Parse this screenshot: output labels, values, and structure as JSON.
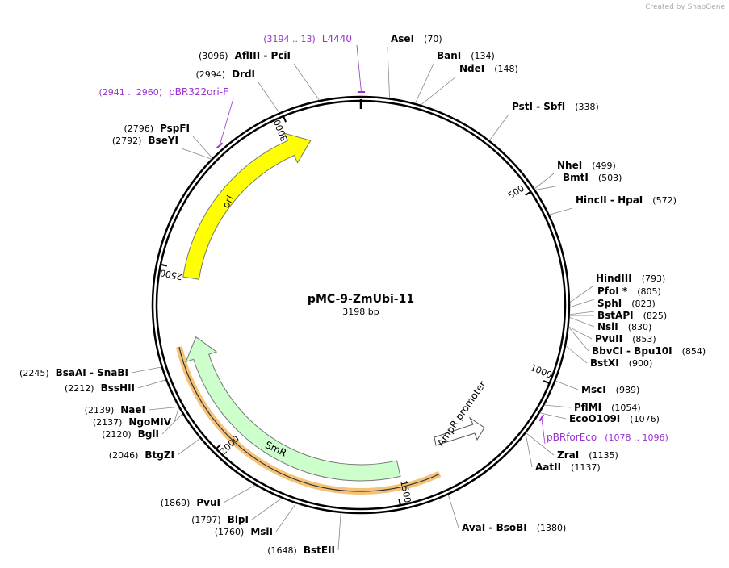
{
  "header": {
    "credit": "Created by SnapGene"
  },
  "map": {
    "name": "pMC-9-ZmUbi-11",
    "size": "3198 bp",
    "ticks": [
      500,
      1000,
      1500,
      2000,
      2500,
      3000
    ],
    "sites": [
      {
        "name": "AseI",
        "position": "(70)"
      },
      {
        "name": "BanI",
        "position": "(134)"
      },
      {
        "name": "NdeI",
        "position": "(148)"
      },
      {
        "name": "PstI  - SbfI",
        "position": "(338)"
      },
      {
        "name": "NheI",
        "position": "(499)"
      },
      {
        "name": "BmtI",
        "position": "(503)"
      },
      {
        "name": "HincII  - HpaI",
        "position": "(572)"
      },
      {
        "name": "HindIII",
        "position": "(793)"
      },
      {
        "name": "PfoI *",
        "position": "(805)"
      },
      {
        "name": "SphI",
        "position": "(823)"
      },
      {
        "name": "BstAPI",
        "position": "(825)"
      },
      {
        "name": "NsiI",
        "position": "(830)"
      },
      {
        "name": "PvuII",
        "position": "(853)"
      },
      {
        "name": "BbvCI  - Bpu10I",
        "position": "(854)"
      },
      {
        "name": "BstXI",
        "position": "(900)"
      },
      {
        "name": "MscI",
        "position": "(989)"
      },
      {
        "name": "PflMI",
        "position": "(1054)"
      },
      {
        "name": "EcoO109I",
        "position": "(1076)"
      },
      {
        "name": "ZraI",
        "position": "(1135)"
      },
      {
        "name": "AatII",
        "position": "(1137)"
      },
      {
        "name": "AvaI  - BsoBI",
        "position": "(1380)"
      },
      {
        "name": "BstEII",
        "position": "(1648)"
      },
      {
        "name": "MslI",
        "position": "(1760)"
      },
      {
        "name": "BlpI",
        "position": "(1797)"
      },
      {
        "name": "PvuI",
        "position": "(1869)"
      },
      {
        "name": "BtgZI",
        "position": "(2046)"
      },
      {
        "name": "BglI",
        "position": "(2120)"
      },
      {
        "name": "NgoMIV",
        "position": "(2137)"
      },
      {
        "name": "NaeI",
        "position": "(2139)"
      },
      {
        "name": "BssHII",
        "position": "(2212)"
      },
      {
        "name": "BsaAI  - SnaBI",
        "position": "(2245)"
      },
      {
        "name": "BseYI",
        "position": "(2792)"
      },
      {
        "name": "PspFI",
        "position": "(2796)"
      },
      {
        "name": "DrdI",
        "position": "(2994)"
      },
      {
        "name": "AflIII  - PciI",
        "position": "(3096)"
      }
    ],
    "primers": [
      {
        "name": "L4440",
        "range": "(3194 .. 13)"
      },
      {
        "name": "pBR322ori-F",
        "range": "(2941 .. 2960)"
      },
      {
        "name": "pBRforEco",
        "range": "(1078 .. 1096)"
      }
    ],
    "features": [
      {
        "name": "ori"
      },
      {
        "name": "SmR"
      },
      {
        "name": "AmpR promoter"
      }
    ]
  }
}
